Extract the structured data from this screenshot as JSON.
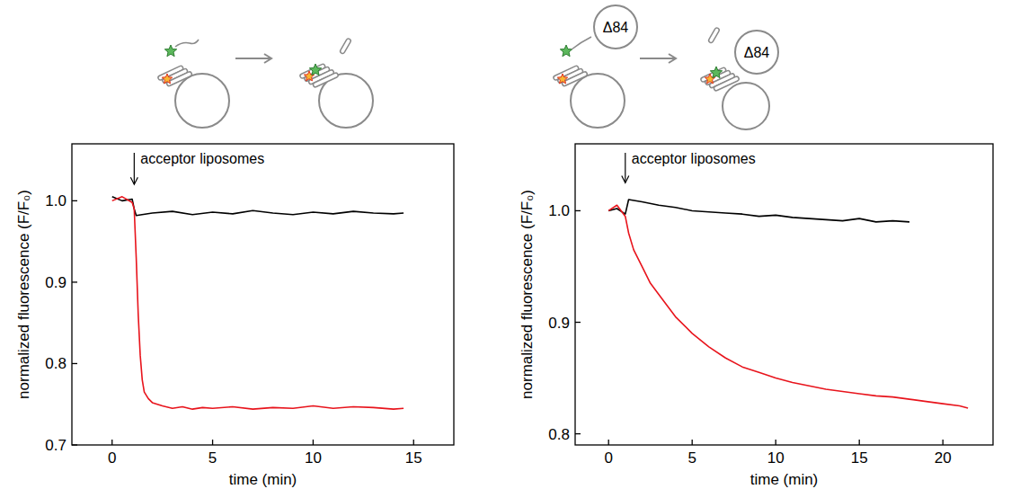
{
  "chart_data": [
    {
      "type": "line",
      "y_label": "normalized fluorescence (F/F₀)",
      "x_label": "time (min)",
      "xlim": [
        -2,
        17
      ],
      "xticks": [
        0,
        5,
        10,
        15
      ],
      "ylim": [
        0.7,
        1.07
      ],
      "yticks": [
        0.7,
        0.8,
        0.9,
        {
          "value": 1,
          "label": "1.0"
        }
      ],
      "annotation": {
        "text": "acceptor liposomes",
        "x": 1.1,
        "y": 1.02
      },
      "series": [
        {
          "color": "#000000",
          "x": [
            0,
            0.5,
            1,
            1.1,
            1.2,
            2,
            3,
            4,
            5,
            6,
            7,
            8,
            9,
            10,
            11,
            12,
            13,
            14,
            14.5
          ],
          "values": [
            1.005,
            1.0,
            1.002,
            0.99,
            0.982,
            0.985,
            0.987,
            0.983,
            0.986,
            0.984,
            0.988,
            0.985,
            0.983,
            0.986,
            0.984,
            0.987,
            0.985,
            0.984,
            0.985
          ]
        },
        {
          "color": "#e8141c",
          "x": [
            0,
            0.5,
            1,
            1.1,
            1.2,
            1.3,
            1.4,
            1.5,
            1.6,
            1.8,
            2,
            2.5,
            3,
            3.5,
            4,
            4.5,
            5,
            6,
            7,
            8,
            9,
            10,
            11,
            12,
            13,
            14,
            14.5
          ],
          "values": [
            1.0,
            1.005,
            0.998,
            0.99,
            0.93,
            0.86,
            0.81,
            0.78,
            0.765,
            0.757,
            0.752,
            0.748,
            0.745,
            0.747,
            0.744,
            0.746,
            0.745,
            0.747,
            0.744,
            0.746,
            0.745,
            0.748,
            0.745,
            0.747,
            0.746,
            0.744,
            0.745
          ]
        }
      ]
    },
    {
      "type": "line",
      "y_label": "normalized fluorescence (F/F₀)",
      "x_label": "time (min)",
      "xlim": [
        -2,
        23
      ],
      "xticks": [
        0,
        5,
        10,
        15,
        20
      ],
      "ylim": [
        0.79,
        1.06
      ],
      "yticks": [
        0.8,
        0.9,
        {
          "value": 1,
          "label": "1.0"
        }
      ],
      "annotation": {
        "text": "acceptor liposomes",
        "x": 1,
        "y": 1.025
      },
      "series": [
        {
          "color": "#000000",
          "x": [
            0,
            0.5,
            1,
            1.2,
            2,
            3,
            4,
            5,
            6,
            7,
            8,
            9,
            10,
            11,
            12,
            13,
            14,
            15,
            16,
            17,
            18
          ],
          "values": [
            1.0,
            1.002,
            0.997,
            1.01,
            1.008,
            1.005,
            1.003,
            1.0,
            0.999,
            0.998,
            0.997,
            0.995,
            0.996,
            0.994,
            0.993,
            0.992,
            0.991,
            0.993,
            0.99,
            0.991,
            0.99
          ]
        },
        {
          "color": "#e8141c",
          "x": [
            0,
            0.5,
            1,
            1.2,
            1.5,
            2,
            2.5,
            3,
            4,
            5,
            6,
            7,
            8,
            9,
            10,
            11,
            12,
            13,
            14,
            15,
            16,
            17,
            18,
            19,
            20,
            21,
            21.5
          ],
          "values": [
            1.0,
            1.005,
            0.995,
            0.98,
            0.965,
            0.95,
            0.935,
            0.925,
            0.905,
            0.89,
            0.878,
            0.868,
            0.86,
            0.855,
            0.85,
            0.846,
            0.843,
            0.84,
            0.838,
            0.836,
            0.834,
            0.833,
            0.831,
            0.829,
            0.827,
            0.825,
            0.823
          ]
        }
      ]
    }
  ],
  "schematics": [
    {
      "labels": []
    },
    {
      "labels": [
        "Δ84",
        "Δ84"
      ]
    }
  ]
}
